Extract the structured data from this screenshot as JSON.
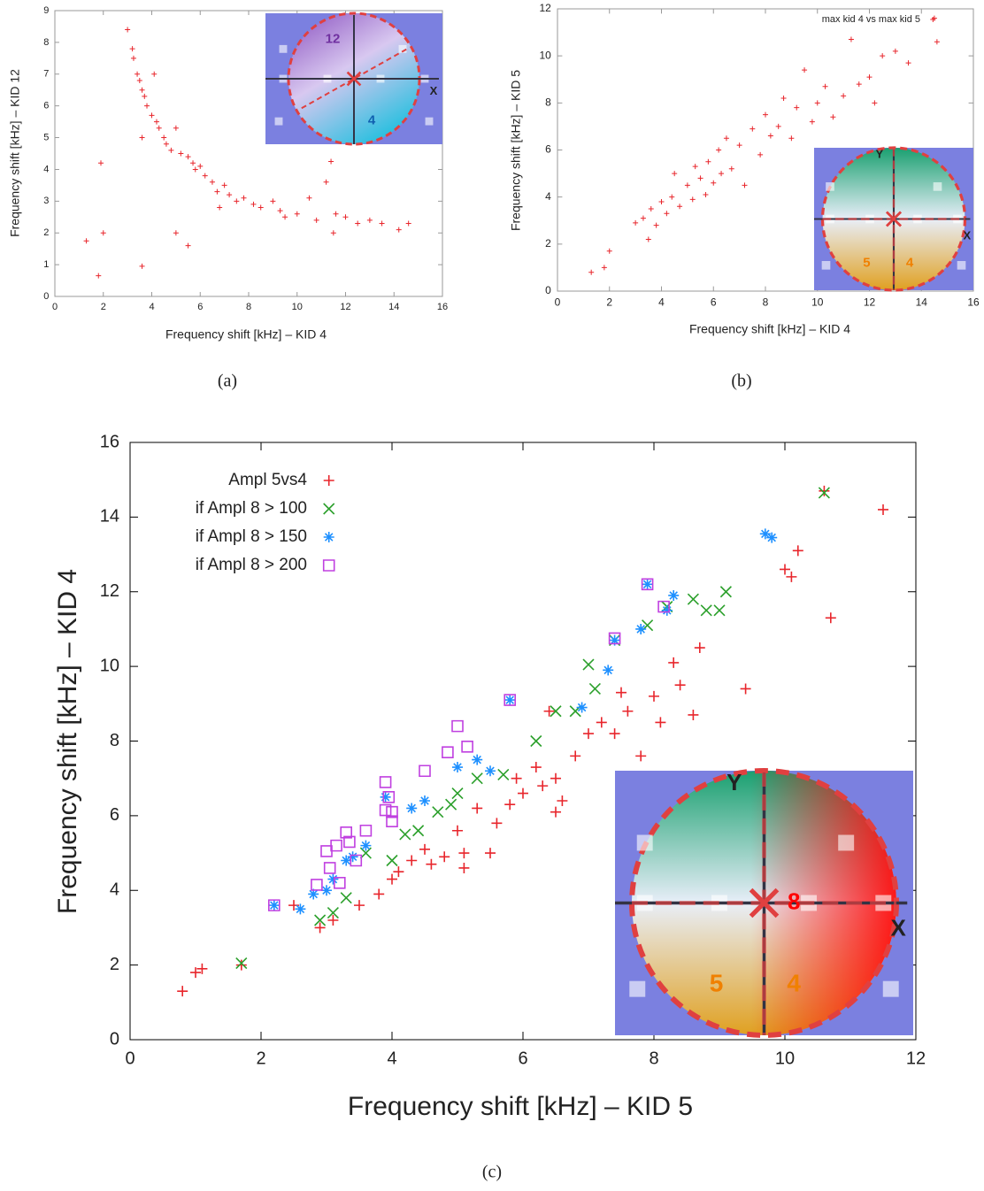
{
  "chart_data": [
    {
      "type": "scatter",
      "caption": "(a)",
      "x_label": "Frequency shift [kHz] – KID 4",
      "y_label": "Frequency shift [kHz] – KID 12",
      "xlim": [
        0,
        16
      ],
      "ylim": [
        0,
        9
      ],
      "xticks": [
        0,
        2,
        4,
        6,
        8,
        10,
        12,
        14,
        16
      ],
      "yticks": [
        0,
        1,
        2,
        3,
        4,
        5,
        6,
        7,
        8,
        9
      ],
      "inset_labels": [
        "12",
        "4",
        "X"
      ],
      "series": [
        {
          "color": "#e8262c",
          "marker": "plus",
          "x": [
            1.3,
            1.8,
            1.9,
            2.0,
            3.0,
            3.2,
            3.25,
            3.4,
            3.5,
            3.6,
            3.7,
            3.6,
            3.6,
            3.8,
            4.0,
            4.1,
            4.2,
            4.3,
            4.5,
            4.6,
            4.8,
            5.0,
            5.0,
            5.2,
            5.5,
            5.5,
            5.7,
            5.8,
            6.0,
            6.2,
            6.5,
            6.7,
            6.8,
            7.0,
            7.2,
            7.5,
            7.8,
            8.2,
            8.5,
            9.0,
            9.3,
            9.5,
            10.0,
            10.5,
            10.8,
            11.2,
            11.4,
            11.5,
            11.6,
            12.0,
            12.5,
            13.0,
            13.5,
            14.2,
            14.6
          ],
          "y": [
            1.75,
            0.65,
            4.2,
            2.0,
            8.4,
            7.8,
            7.5,
            7.0,
            6.8,
            6.5,
            6.3,
            0.95,
            5.0,
            6.0,
            5.7,
            7.0,
            5.5,
            5.3,
            5.0,
            4.8,
            4.6,
            5.3,
            2.0,
            4.5,
            4.4,
            1.6,
            4.2,
            4.0,
            4.1,
            3.8,
            3.6,
            3.3,
            2.8,
            3.5,
            3.2,
            3.0,
            3.1,
            2.9,
            2.8,
            3.0,
            2.7,
            2.5,
            2.6,
            3.1,
            2.4,
            3.6,
            4.25,
            2.0,
            2.6,
            2.5,
            2.3,
            2.4,
            2.3,
            2.1,
            2.3
          ]
        }
      ]
    },
    {
      "type": "scatter",
      "caption": "(b)",
      "x_label": "Frequency shift [kHz] – KID 4",
      "y_label": "Frequency shift [kHz] – KID 5",
      "xlim": [
        0,
        16
      ],
      "ylim": [
        0,
        12
      ],
      "xticks": [
        0,
        2,
        4,
        6,
        8,
        10,
        12,
        14,
        16
      ],
      "yticks": [
        0,
        2,
        4,
        6,
        8,
        10,
        12
      ],
      "inset_labels": [
        "Y",
        "X",
        "5",
        "4"
      ],
      "series": [
        {
          "name": "max kid 4 vs max kid 5",
          "color": "#e8262c",
          "marker": "plus",
          "x": [
            1.3,
            1.8,
            2.0,
            3.0,
            3.3,
            3.5,
            3.6,
            3.8,
            4.0,
            4.2,
            4.4,
            4.5,
            4.7,
            5.0,
            5.2,
            5.3,
            5.5,
            5.7,
            5.8,
            6.0,
            6.2,
            6.3,
            6.5,
            6.7,
            7.0,
            7.2,
            7.5,
            7.8,
            8.0,
            8.2,
            8.5,
            8.7,
            9.0,
            9.2,
            9.5,
            9.8,
            10.0,
            10.3,
            10.6,
            11.0,
            11.3,
            11.6,
            12.0,
            12.2,
            12.5,
            13.0,
            13.5,
            14.5,
            14.6
          ],
          "y": [
            0.8,
            1.0,
            1.7,
            2.9,
            3.1,
            2.2,
            3.5,
            2.8,
            3.8,
            3.3,
            4.0,
            5.0,
            3.6,
            4.5,
            3.9,
            5.3,
            4.8,
            4.1,
            5.5,
            4.6,
            6.0,
            5.0,
            6.5,
            5.2,
            6.2,
            4.5,
            6.9,
            5.8,
            7.5,
            6.6,
            7.0,
            8.2,
            6.5,
            7.8,
            9.4,
            7.2,
            8.0,
            8.7,
            7.4,
            8.3,
            10.7,
            8.8,
            9.1,
            8.0,
            10.0,
            10.2,
            9.7,
            11.6,
            10.6
          ]
        }
      ]
    },
    {
      "type": "scatter",
      "caption": "(c)",
      "x_label": "Frequency shift [kHz] – KID 5",
      "y_label": "Frequency shift [kHz] – KID 4",
      "xlim": [
        0,
        12
      ],
      "ylim": [
        0,
        16
      ],
      "xticks": [
        0,
        2,
        4,
        6,
        8,
        10,
        12
      ],
      "yticks": [
        0,
        2,
        4,
        6,
        8,
        10,
        12,
        14,
        16
      ],
      "inset_labels": [
        "Y",
        "8",
        "X",
        "5",
        "4"
      ],
      "series": [
        {
          "name": "Ampl 5vs4",
          "color": "#e8262c",
          "marker": "plus",
          "x": [
            0.8,
            1.0,
            1.1,
            1.7,
            2.5,
            2.9,
            3.1,
            3.5,
            3.8,
            4.0,
            4.1,
            4.3,
            4.5,
            4.6,
            4.8,
            5.0,
            5.1,
            5.3,
            5.5,
            5.6,
            5.8,
            5.9,
            6.0,
            6.2,
            6.3,
            6.5,
            6.5,
            6.6,
            6.8,
            7.0,
            7.2,
            7.4,
            7.5,
            7.6,
            7.8,
            8.0,
            8.1,
            8.3,
            8.4,
            8.6,
            8.7,
            9.4,
            10.0,
            10.1,
            10.2,
            10.7,
            11.5,
            10.6,
            5.1,
            6.4
          ],
          "y": [
            1.3,
            1.8,
            1.9,
            2.0,
            3.6,
            3.0,
            3.2,
            3.6,
            3.9,
            4.3,
            4.5,
            4.8,
            5.1,
            4.7,
            4.9,
            5.6,
            4.6,
            6.2,
            5.0,
            5.8,
            6.3,
            7.0,
            6.6,
            7.3,
            6.8,
            7.0,
            6.1,
            6.4,
            7.6,
            8.2,
            8.5,
            8.2,
            9.3,
            8.8,
            7.6,
            9.2,
            8.5,
            10.1,
            9.5,
            8.7,
            10.5,
            9.4,
            12.6,
            12.4,
            13.1,
            11.3,
            14.2,
            14.7,
            5.0,
            8.8
          ]
        },
        {
          "name": "if Ampl 8 > 100",
          "color": "#2ca02c",
          "marker": "x",
          "x": [
            1.7,
            2.9,
            3.1,
            3.3,
            3.6,
            4.0,
            4.2,
            4.4,
            4.7,
            4.9,
            5.0,
            5.3,
            5.7,
            6.2,
            6.5,
            6.8,
            7.0,
            7.1,
            7.4,
            7.9,
            8.2,
            8.6,
            8.8,
            9.0,
            9.1,
            10.6
          ],
          "y": [
            2.05,
            3.2,
            3.4,
            3.8,
            5.0,
            4.8,
            5.5,
            5.6,
            6.1,
            6.3,
            6.6,
            7.0,
            7.1,
            8.0,
            8.8,
            8.8,
            10.05,
            9.4,
            10.7,
            11.1,
            11.6,
            11.8,
            11.5,
            11.5,
            12.0,
            14.65
          ]
        },
        {
          "name": "if Ampl 8 > 150",
          "color": "#1e90ff",
          "marker": "star",
          "x": [
            2.2,
            2.6,
            2.8,
            3.0,
            3.1,
            3.3,
            3.4,
            3.6,
            3.9,
            4.3,
            4.5,
            5.0,
            5.3,
            5.5,
            5.8,
            6.9,
            7.3,
            7.4,
            7.8,
            8.2,
            8.3,
            9.7,
            9.8,
            7.9
          ],
          "y": [
            3.6,
            3.5,
            3.9,
            4.0,
            4.3,
            4.8,
            4.9,
            5.2,
            6.5,
            6.2,
            6.4,
            7.3,
            7.5,
            7.2,
            9.1,
            8.9,
            9.9,
            10.7,
            11.0,
            11.5,
            11.9,
            13.55,
            13.45,
            12.2
          ]
        },
        {
          "name": "if Ampl 8 > 200",
          "color": "#c040e0",
          "marker": "square",
          "x": [
            2.2,
            2.85,
            3.0,
            3.05,
            3.15,
            3.2,
            3.3,
            3.35,
            3.45,
            3.6,
            3.9,
            3.95,
            4.0,
            3.9,
            4.0,
            4.5,
            4.85,
            5.0,
            5.15,
            5.8,
            7.4,
            7.9,
            8.15
          ],
          "y": [
            3.6,
            4.15,
            5.05,
            4.6,
            5.2,
            4.2,
            5.55,
            5.3,
            4.8,
            5.6,
            6.9,
            6.5,
            6.1,
            6.15,
            5.85,
            7.2,
            7.7,
            8.4,
            7.85,
            9.1,
            10.75,
            12.2,
            11.6
          ]
        }
      ]
    }
  ]
}
